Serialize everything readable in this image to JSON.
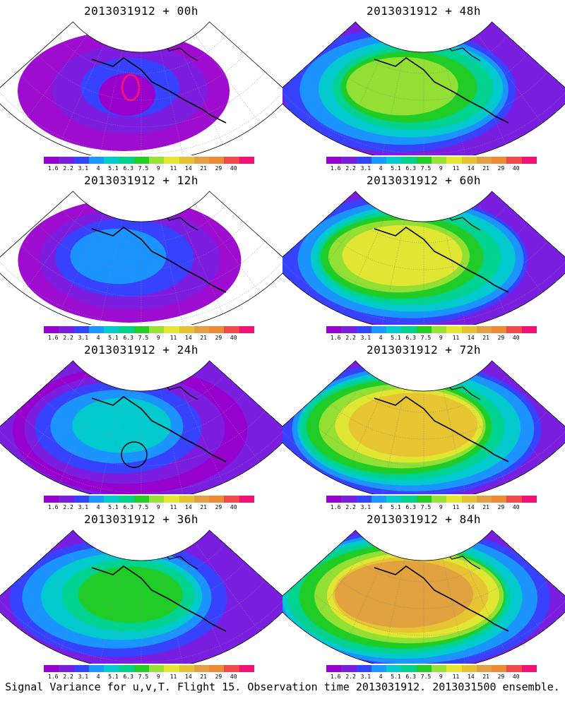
{
  "panels": [
    {
      "title": "2013031912 + 00h",
      "level": 0
    },
    {
      "title": "2013031912 + 48h",
      "level": 4
    },
    {
      "title": "2013031912 + 12h",
      "level": 1
    },
    {
      "title": "2013031912 + 60h",
      "level": 5
    },
    {
      "title": "2013031912 + 24h",
      "level": 2
    },
    {
      "title": "2013031912 + 72h",
      "level": 6
    },
    {
      "title": "2013031912 + 36h",
      "level": 3
    },
    {
      "title": "2013031912 + 84h",
      "level": 7
    }
  ],
  "colorbar": {
    "colors": [
      "#9900cc",
      "#7a1fe0",
      "#3344ff",
      "#1a99ff",
      "#00cccc",
      "#00d28c",
      "#22cc22",
      "#99e035",
      "#e6e633",
      "#e6c233",
      "#e0a040",
      "#f08a30",
      "#f04a4a",
      "#f0107a"
    ],
    "labels": [
      "1.6",
      "2.2",
      "3.1",
      "4",
      "5.1",
      "6.3",
      "7.5",
      "9",
      "11",
      "14",
      "21",
      "29",
      "40"
    ]
  },
  "footer": "Signal Variance for u,v,T. Flight 15. Observation time 2013031912. 2013031500 ensemble."
}
